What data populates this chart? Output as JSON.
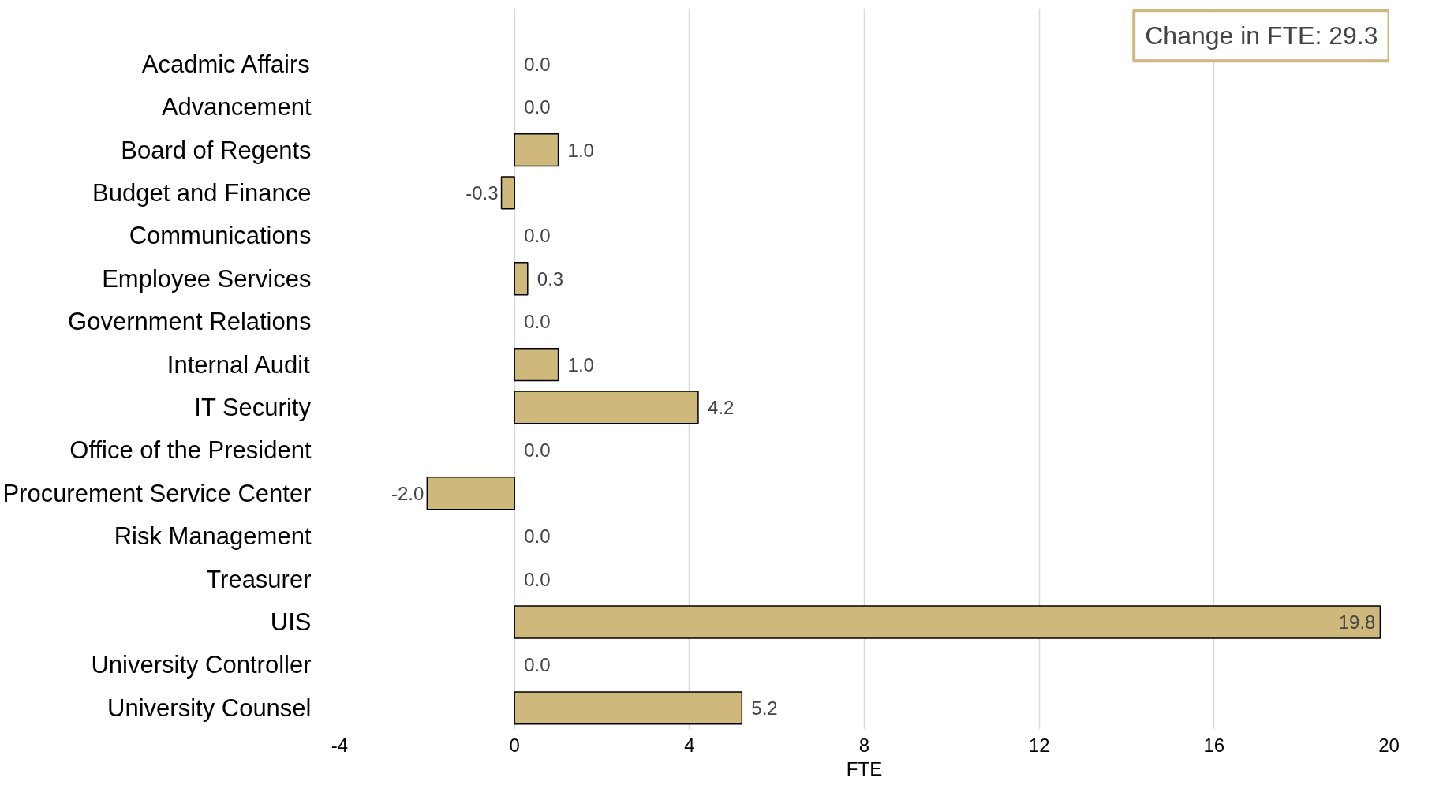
{
  "chart_data": {
    "type": "bar",
    "orientation": "horizontal",
    "xlabel": "FTE",
    "categories": [
      "Acadmic Affairs",
      "Advancement",
      "Board of Regents",
      "Budget and Finance",
      "Communications",
      "Employee Services",
      "Government Relations",
      "Internal Audit",
      "IT Security",
      "Office of the President",
      "Procurement Service Center",
      "Risk Management",
      "Treasurer",
      "UIS",
      "University Controller",
      "University Counsel"
    ],
    "values": [
      0,
      0,
      1.0,
      -0.3,
      0,
      0.3,
      0,
      1.0,
      4.2,
      0,
      -2.0,
      0,
      0,
      19.8,
      0,
      5.2
    ],
    "value_labels": [
      "0.0",
      "0.0",
      "1.0",
      "-0.3",
      "0.0",
      "0.3",
      "0.0",
      "1.0",
      "4.2",
      "0.0",
      "-2.0",
      "0.0",
      "0.0",
      "19.8",
      "0.0",
      "5.2"
    ],
    "color": "#cfb87c",
    "xlim": [
      -4,
      20
    ],
    "xticks": [
      -4,
      0,
      4,
      8,
      12,
      16,
      20
    ],
    "grid": "x",
    "annotations": [
      "Change in FTE: 29.3"
    ]
  }
}
